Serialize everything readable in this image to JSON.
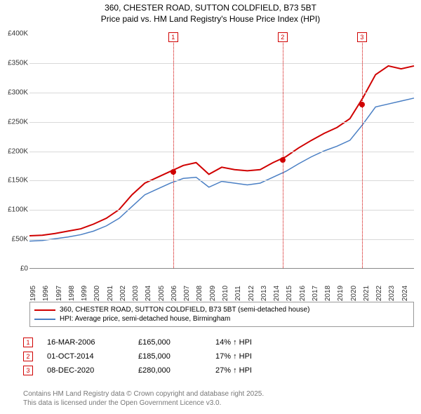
{
  "title_line1": "360, CHESTER ROAD, SUTTON COLDFIELD, B73 5BT",
  "title_line2": "Price paid vs. HM Land Registry's House Price Index (HPI)",
  "chart": {
    "type": "line",
    "background_color": "#ffffff",
    "grid_color": "#d9d9d9",
    "x_years": [
      1995,
      1996,
      1997,
      1998,
      1999,
      2000,
      2001,
      2002,
      2003,
      2004,
      2005,
      2006,
      2007,
      2008,
      2009,
      2010,
      2011,
      2012,
      2013,
      2014,
      2015,
      2016,
      2017,
      2018,
      2019,
      2020,
      2021,
      2022,
      2023,
      2024
    ],
    "x_min_year": 1995,
    "x_max_year": 2025,
    "ylim": [
      0,
      400000
    ],
    "ytick_step": 50000,
    "ytick_labels": [
      "£0",
      "£50K",
      "£100K",
      "£150K",
      "£200K",
      "£250K",
      "£300K",
      "£350K",
      "£400K"
    ],
    "label_fontsize": 10,
    "series_price": {
      "label": "360, CHESTER ROAD, SUTTON COLDFIELD, B73 5BT (semi-detached house)",
      "color": "#d00000",
      "line_width": 2,
      "values_by_year": {
        "1995": 55000,
        "1996": 56000,
        "1997": 59000,
        "1998": 63000,
        "1999": 67000,
        "2000": 75000,
        "2001": 85000,
        "2002": 100000,
        "2003": 125000,
        "2004": 145000,
        "2005": 155000,
        "2006": 165000,
        "2007": 175000,
        "2008": 180000,
        "2009": 160000,
        "2010": 172000,
        "2011": 168000,
        "2012": 166000,
        "2013": 168000,
        "2014": 180000,
        "2015": 190000,
        "2016": 205000,
        "2017": 218000,
        "2018": 230000,
        "2019": 240000,
        "2020": 255000,
        "2021": 290000,
        "2022": 330000,
        "2023": 345000,
        "2024": 340000,
        "2025": 345000
      }
    },
    "series_hpi": {
      "label": "HPI: Average price, semi-detached house, Birmingham",
      "color": "#4a7fc4",
      "line_width": 1.5,
      "values_by_year": {
        "1995": 46000,
        "1996": 47000,
        "1997": 50000,
        "1998": 53000,
        "1999": 57000,
        "2000": 63000,
        "2001": 72000,
        "2002": 85000,
        "2003": 105000,
        "2004": 125000,
        "2005": 135000,
        "2006": 145000,
        "2007": 153000,
        "2008": 155000,
        "2009": 138000,
        "2010": 148000,
        "2011": 145000,
        "2012": 142000,
        "2013": 145000,
        "2014": 155000,
        "2015": 165000,
        "2016": 178000,
        "2017": 190000,
        "2018": 200000,
        "2019": 208000,
        "2020": 218000,
        "2021": 245000,
        "2022": 275000,
        "2023": 280000,
        "2024": 285000,
        "2025": 290000
      }
    },
    "markers": [
      {
        "n": "1",
        "year": 2006.21,
        "price": 165000
      },
      {
        "n": "2",
        "year": 2014.75,
        "price": 185000
      },
      {
        "n": "3",
        "year": 2020.94,
        "price": 280000
      }
    ],
    "marker_color": "#d00000"
  },
  "legend": {
    "items": [
      {
        "color": "#d00000",
        "label": "360, CHESTER ROAD, SUTTON COLDFIELD, B73 5BT (semi-detached house)"
      },
      {
        "color": "#4a7fc4",
        "label": "HPI: Average price, semi-detached house, Birmingham"
      }
    ]
  },
  "events": [
    {
      "n": "1",
      "date": "16-MAR-2006",
      "price": "£165,000",
      "diff": "14% ↑ HPI"
    },
    {
      "n": "2",
      "date": "01-OCT-2014",
      "price": "£185,000",
      "diff": "17% ↑ HPI"
    },
    {
      "n": "3",
      "date": "08-DEC-2020",
      "price": "£280,000",
      "diff": "27% ↑ HPI"
    }
  ],
  "footnote_line1": "Contains HM Land Registry data © Crown copyright and database right 2025.",
  "footnote_line2": "This data is licensed under the Open Government Licence v3.0."
}
